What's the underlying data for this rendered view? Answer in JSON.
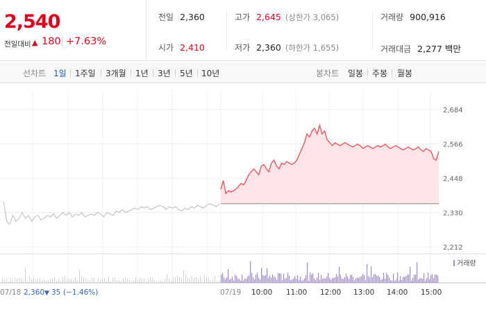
{
  "summary": {
    "price": "2,540",
    "change_label": "전일대비",
    "change_arrow": "▲",
    "change_value": "180",
    "change_pct": "+7.63%",
    "stats": {
      "prev_close": {
        "label": "전일",
        "value": "2,360"
      },
      "open": {
        "label": "시가",
        "value": "2,410"
      },
      "high": {
        "label": "고가",
        "value": "2,645",
        "sub": "(상한가 3,065)"
      },
      "low": {
        "label": "저가",
        "value": "2,360",
        "sub": "(하한가 1,655)"
      },
      "volume": {
        "label": "거래량",
        "value": "900,916"
      },
      "amount": {
        "label": "거래대금",
        "value": "2,277 백만"
      }
    }
  },
  "period_bar": {
    "line_label": "선차트",
    "line_periods": [
      "1일",
      "1주일",
      "3개월",
      "1년",
      "3년",
      "5년",
      "10년"
    ],
    "active": "1일",
    "candle_label": "봉차트",
    "candle_periods": [
      "일봉",
      "주봉",
      "월봉"
    ]
  },
  "chart_data": {
    "type": "line",
    "y_ticks": [
      "2,684",
      "2,566",
      "2,448",
      "2,330",
      "2,212"
    ],
    "ylim": [
      2212,
      2684
    ],
    "baseline": 2360,
    "x_ticks": [
      "07/19",
      "10:00",
      "11:00",
      "12:00",
      "13:00",
      "14:00",
      "15:00"
    ],
    "prev_day_label": "07/18",
    "prev_day_close": "2,360",
    "prev_day_arrow": "▼",
    "prev_day_change": "35",
    "prev_day_pct": "(−1.46%)",
    "volume_legend": "거래량",
    "prev_day_series": [
      2370,
      2300,
      2290,
      2320,
      2300,
      2310,
      2330,
      2310,
      2320,
      2300,
      2315,
      2320,
      2305,
      2310,
      2320,
      2315,
      2325,
      2310,
      2320,
      2330,
      2320,
      2330,
      2315,
      2325,
      2320,
      2330,
      2315,
      2320,
      2325,
      2320,
      2330,
      2325,
      2315,
      2330,
      2325,
      2320,
      2335,
      2330,
      2340,
      2330,
      2335,
      2340,
      2345,
      2340,
      2350,
      2345,
      2350,
      2340,
      2345,
      2350,
      2355,
      2350,
      2340,
      2350,
      2345,
      2350,
      2340,
      2335,
      2345,
      2340,
      2350,
      2345,
      2355,
      2350,
      2345,
      2355,
      2360,
      2355,
      2350,
      2360
    ],
    "today_series": [
      2410,
      2440,
      2395,
      2405,
      2400,
      2405,
      2410,
      2420,
      2430,
      2425,
      2440,
      2460,
      2470,
      2480,
      2470,
      2460,
      2490,
      2495,
      2480,
      2470,
      2500,
      2510,
      2490,
      2480,
      2500,
      2495,
      2505,
      2500,
      2495,
      2500,
      2510,
      2530,
      2550,
      2570,
      2600,
      2590,
      2610,
      2620,
      2600,
      2630,
      2600,
      2610,
      2580,
      2570,
      2560,
      2570,
      2565,
      2560,
      2565,
      2570,
      2565,
      2560,
      2555,
      2560,
      2565,
      2560,
      2550,
      2555,
      2560,
      2555,
      2550,
      2555,
      2560,
      2555,
      2560,
      2565,
      2555,
      2550,
      2555,
      2560,
      2555,
      2550,
      2545,
      2550,
      2555,
      2550,
      2545,
      2550,
      2555,
      2545,
      2540,
      2550,
      2545,
      2540,
      2515,
      2510,
      2540
    ]
  }
}
